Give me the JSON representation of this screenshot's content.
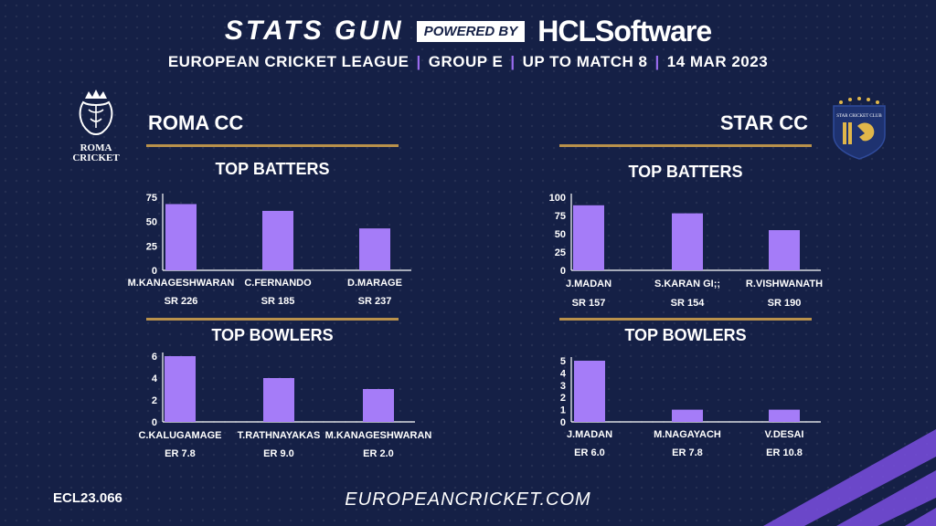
{
  "header": {
    "stats_gun": "STATS GUN",
    "powered_by": "POWERED BY",
    "sponsor": "HCLSoftware",
    "league": "EUROPEAN CRICKET LEAGUE",
    "sep": "|",
    "group": "GROUP  E",
    "match": "UP TO MATCH  8",
    "date": "14 MAR 2023"
  },
  "teams": {
    "left": {
      "name": "ROMA CC",
      "logo_text_1": "ROMA",
      "logo_text_2": "CRICKET"
    },
    "right": {
      "name": "STAR CC",
      "logo_text": "STAR CRICKET CLUB"
    }
  },
  "sections": {
    "batters": "TOP BATTERS",
    "bowlers": "TOP BOWLERS"
  },
  "footer": {
    "code": "ECL23.066",
    "site": "EUROPEANCRICKET.COM"
  },
  "colors": {
    "bar": "#a57cf8",
    "background": "#152046",
    "rule": "#b9914b"
  },
  "chart_data": [
    {
      "type": "bar",
      "title": "TOP BATTERS",
      "team": "ROMA CC",
      "categories": [
        "M.KANAGESHWARAN",
        "C.FERNANDO",
        "D.MARAGE"
      ],
      "values": [
        68,
        61,
        43
      ],
      "rates": [
        "SR 226",
        "SR 185",
        "SR 237"
      ],
      "ylim": [
        0,
        75
      ],
      "yticks": [
        0,
        25,
        50,
        75
      ]
    },
    {
      "type": "bar",
      "title": "TOP BOWLERS",
      "team": "ROMA CC",
      "categories": [
        "C.KALUGAMAGE",
        "T.RATHNAYAKAS",
        "M.KANAGESHWARAN"
      ],
      "values": [
        6,
        4,
        3
      ],
      "rates": [
        "ER 7.8",
        "ER 9.0",
        "ER 2.0"
      ],
      "ylim": [
        0,
        6
      ],
      "yticks": [
        0,
        2,
        4,
        6
      ]
    },
    {
      "type": "bar",
      "title": "TOP BATTERS",
      "team": "STAR CC",
      "categories": [
        "J.MADAN",
        "S.KARAN GI;;",
        "R.VISHWANATH"
      ],
      "values": [
        89,
        78,
        55
      ],
      "rates": [
        "SR 157",
        "SR 154",
        "SR 190"
      ],
      "ylim": [
        0,
        100
      ],
      "yticks": [
        0,
        25,
        50,
        75,
        100
      ]
    },
    {
      "type": "bar",
      "title": "TOP BOWLERS",
      "team": "STAR CC",
      "categories": [
        "J.MADAN",
        "M.NAGAYACH",
        "V.DESAI"
      ],
      "values": [
        5,
        1,
        1
      ],
      "rates": [
        "ER 6.0",
        "ER 7.8",
        "ER 10.8"
      ],
      "ylim": [
        0,
        5
      ],
      "yticks": [
        0,
        1,
        2,
        3,
        4,
        5
      ]
    }
  ]
}
